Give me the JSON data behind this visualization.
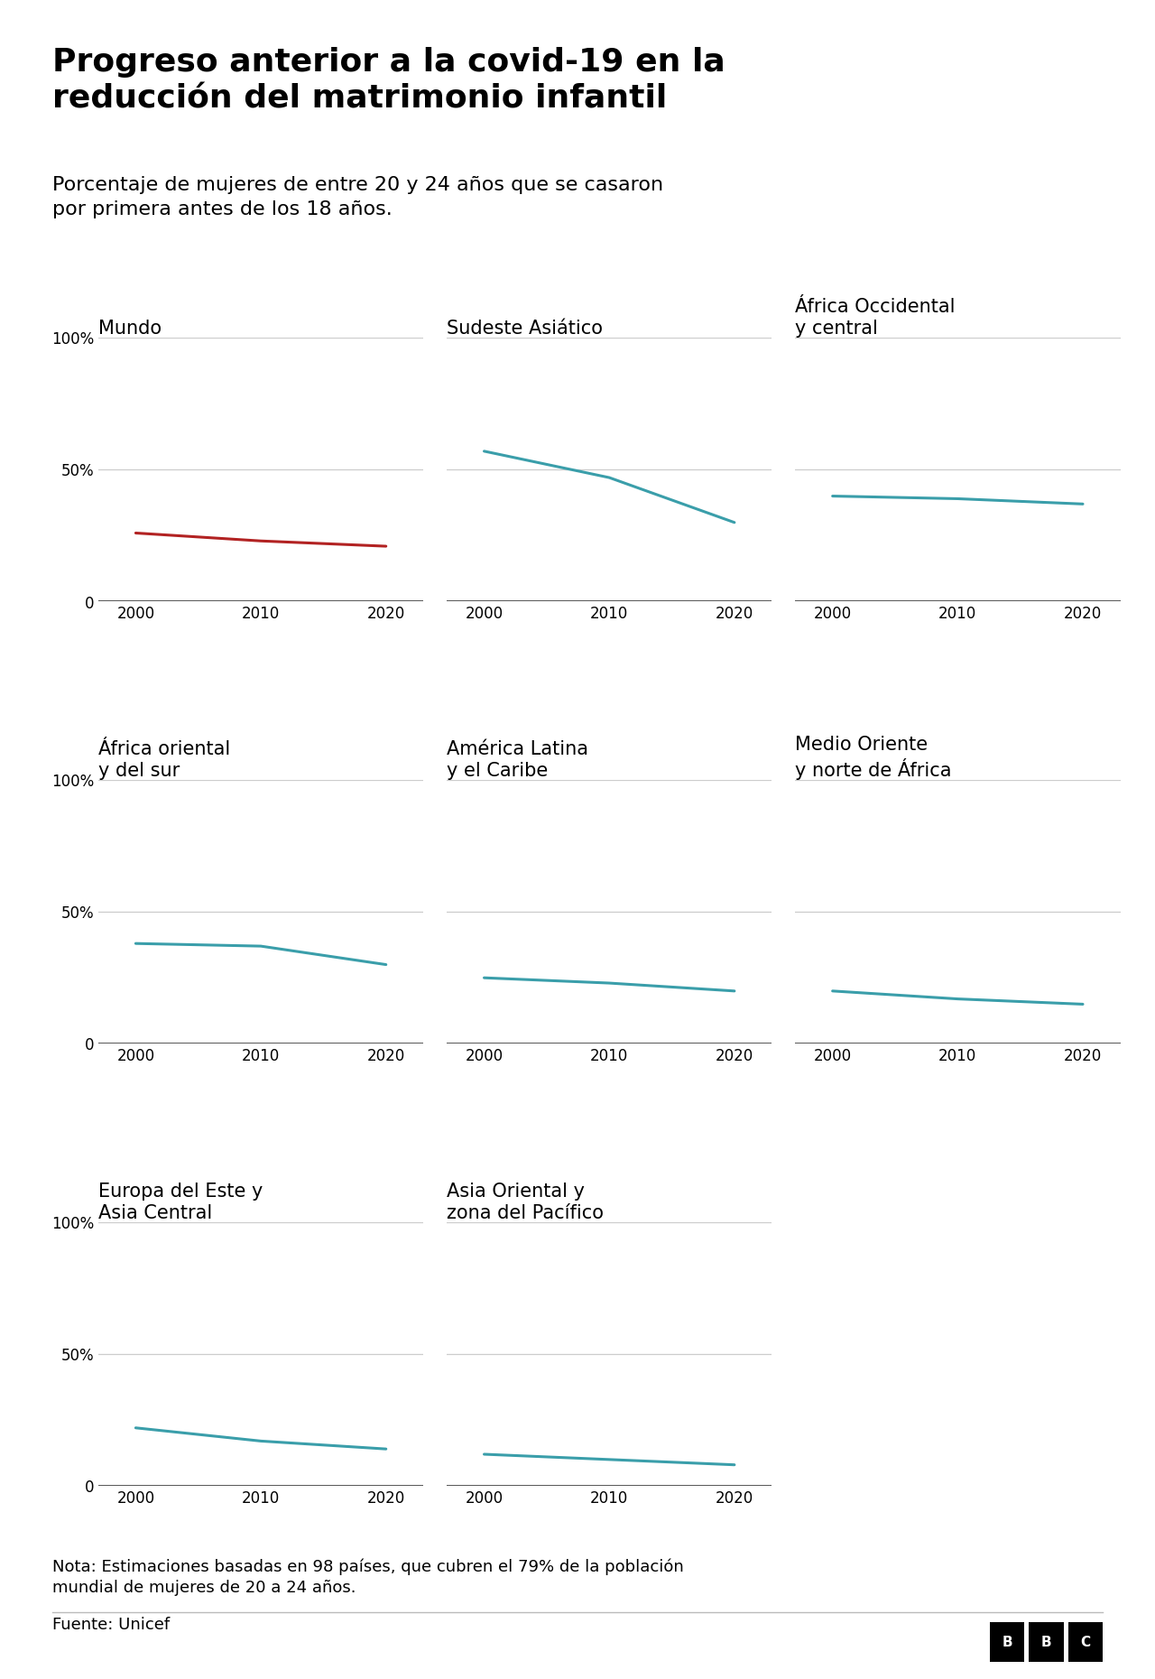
{
  "title": "Progreso anterior a la covid-19 en la\nreducción del matrimonio infantil",
  "subtitle": "Porcentaje de mujeres de entre 20 y 24 años que se casaron\npor primera antes de los 18 años.",
  "note": "Nota: Estimaciones basadas en 98 países, que cubren el 79% de la población\nmundial de mujeres de 20 a 24 años.",
  "source": "Fuente: Unicef",
  "years": [
    2000,
    2010,
    2020
  ],
  "subplots": [
    {
      "title_lines": [
        "Mundo"
      ],
      "values": [
        26,
        23,
        21
      ],
      "color": "#b22222",
      "row": 0,
      "col": 0
    },
    {
      "title_lines": [
        "Sudeste Asiático"
      ],
      "values": [
        57,
        47,
        30
      ],
      "color": "#3a9eaa",
      "row": 0,
      "col": 1
    },
    {
      "title_lines": [
        "África Occidental",
        "y central"
      ],
      "values": [
        40,
        39,
        37
      ],
      "color": "#3a9eaa",
      "row": 0,
      "col": 2
    },
    {
      "title_lines": [
        "África oriental",
        "y del sur"
      ],
      "values": [
        38,
        37,
        30
      ],
      "color": "#3a9eaa",
      "row": 1,
      "col": 0
    },
    {
      "title_lines": [
        "América Latina",
        "y el Caribe"
      ],
      "values": [
        25,
        23,
        20
      ],
      "color": "#3a9eaa",
      "row": 1,
      "col": 1
    },
    {
      "title_lines": [
        "Medio Oriente",
        "y norte de África"
      ],
      "values": [
        20,
        17,
        15
      ],
      "color": "#3a9eaa",
      "row": 1,
      "col": 2
    },
    {
      "title_lines": [
        "Europa del Este y",
        "Asia Central"
      ],
      "values": [
        22,
        17,
        14
      ],
      "color": "#3a9eaa",
      "row": 2,
      "col": 0
    },
    {
      "title_lines": [
        "Asia Oriental y",
        "zona del Pacífico"
      ],
      "values": [
        12,
        10,
        8
      ],
      "color": "#3a9eaa",
      "row": 2,
      "col": 1
    }
  ],
  "ylim": [
    0,
    100
  ],
  "background_color": "#ffffff",
  "grid_color": "#cccccc",
  "zero_line_color": "#222222",
  "title_fontsize": 26,
  "subtitle_fontsize": 16,
  "subplot_title_fontsize": 15,
  "tick_fontsize": 12,
  "note_fontsize": 13,
  "source_fontsize": 13
}
